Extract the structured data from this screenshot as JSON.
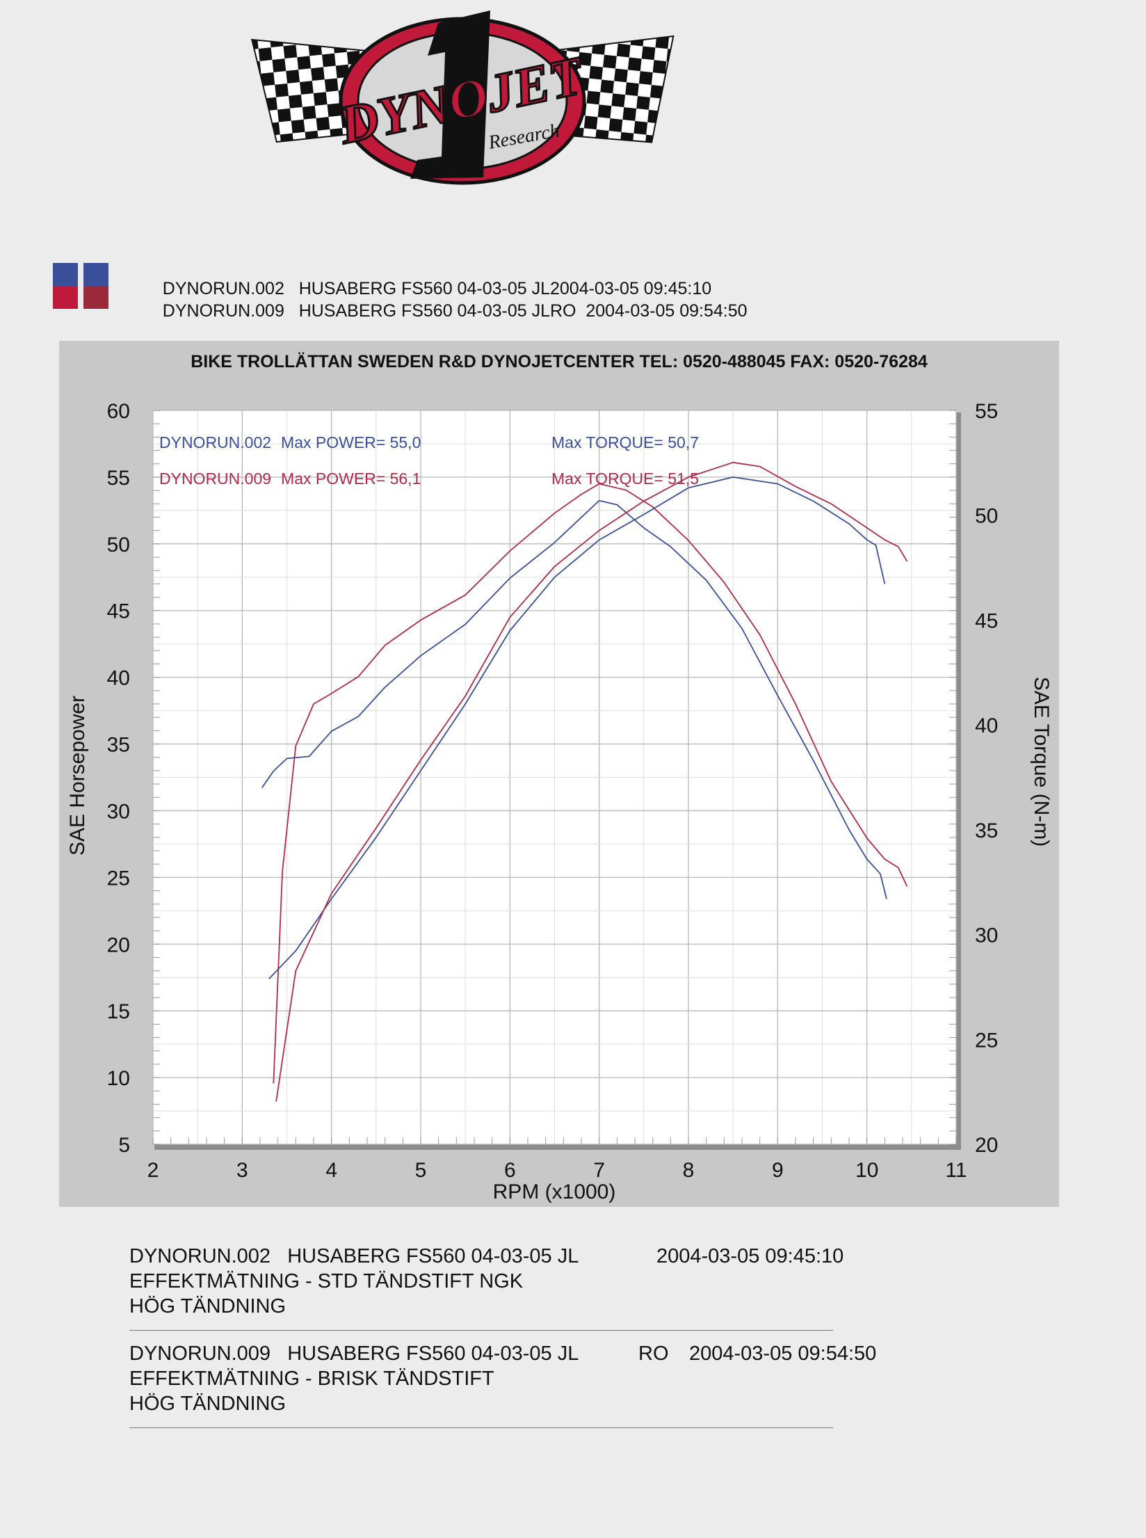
{
  "logo": {
    "text": "DYNOJET",
    "subtext": "Research",
    "colors": {
      "red": "#c0193a",
      "black": "#111111"
    }
  },
  "header_legend": [
    {
      "run": "DYNORUN.002",
      "desc": "HUSABERG FS560 04-03-05 JL2004-03-05 09:45:10",
      "color": "#3a4f9a"
    },
    {
      "run": "DYNORUN.009",
      "desc": "HUSABERG FS560 04-03-05 JLRO  2004-03-05 09:54:50",
      "color": "#b02a4a"
    }
  ],
  "chart_data": {
    "type": "line",
    "title": "BIKE TROLLÄTTAN SWEDEN R&D DYNOJETCENTER TEL: 0520-488045 FAX: 0520-76284",
    "xlabel": "RPM (x1000)",
    "ylabel": "SAE Horsepower",
    "y2label": "SAE Torque (N-m)",
    "xlim": [
      2,
      11
    ],
    "ylim": [
      5,
      60
    ],
    "y2lim": [
      20,
      55
    ],
    "x_ticks": [
      2,
      3,
      4,
      5,
      6,
      7,
      8,
      9,
      10,
      11
    ],
    "y_ticks": [
      5,
      10,
      15,
      20,
      25,
      30,
      35,
      40,
      45,
      50,
      55,
      60
    ],
    "y2_ticks": [
      20,
      25,
      30,
      35,
      40,
      45,
      50,
      55
    ],
    "grid": true,
    "annotations": [
      {
        "run": "DYNORUN.002",
        "power_label": "Max POWER= 55,0",
        "torque_label": "Max TORQUE= 50,7",
        "color": "#3a4f9a"
      },
      {
        "run": "DYNORUN.009",
        "power_label": "Max POWER= 56,1",
        "torque_label": "Max TORQUE= 51,5",
        "color": "#b02a4a"
      }
    ],
    "series": [
      {
        "name": "DYNORUN.002",
        "quantity": "torque",
        "axis": "right",
        "color": "#3a4f9a",
        "x": [
          3.22,
          3.35,
          3.5,
          3.75,
          4.0,
          4.3,
          4.6,
          5.0,
          5.5,
          6.0,
          6.5,
          6.8,
          7.0,
          7.2,
          7.5,
          7.8,
          8.2,
          8.6,
          9.0,
          9.4,
          9.8,
          10.0,
          10.15,
          10.22
        ],
        "y": [
          37.0,
          37.8,
          38.4,
          38.5,
          39.7,
          40.4,
          41.8,
          43.3,
          44.8,
          47.0,
          48.7,
          49.9,
          50.7,
          50.5,
          49.4,
          48.5,
          46.9,
          44.6,
          41.4,
          38.3,
          35.0,
          33.6,
          32.9,
          31.7
        ]
      },
      {
        "name": "DYNORUN.009",
        "quantity": "torque",
        "axis": "right",
        "color": "#b02a4a",
        "x": [
          3.35,
          3.45,
          3.6,
          3.8,
          4.0,
          4.3,
          4.6,
          5.0,
          5.5,
          6.0,
          6.5,
          6.8,
          7.0,
          7.3,
          7.6,
          8.0,
          8.4,
          8.8,
          9.2,
          9.6,
          10.0,
          10.2,
          10.35,
          10.45
        ],
        "y": [
          22.9,
          33.0,
          39.0,
          41.0,
          41.5,
          42.3,
          43.8,
          45.0,
          46.2,
          48.3,
          50.1,
          51.0,
          51.5,
          51.2,
          50.4,
          48.8,
          46.8,
          44.3,
          41.0,
          37.3,
          34.6,
          33.6,
          33.2,
          32.3
        ]
      },
      {
        "name": "DYNORUN.002",
        "quantity": "power",
        "axis": "left",
        "color": "#3a4f9a",
        "x": [
          3.3,
          3.6,
          4.0,
          4.5,
          5.0,
          5.5,
          6.0,
          6.5,
          7.0,
          7.5,
          8.0,
          8.5,
          9.0,
          9.4,
          9.8,
          10.0,
          10.1,
          10.2
        ],
        "y": [
          17.4,
          19.5,
          23.4,
          28.0,
          33.0,
          38.0,
          43.5,
          47.5,
          50.3,
          52.2,
          54.2,
          55.0,
          54.5,
          53.2,
          51.5,
          50.3,
          49.9,
          47.0
        ]
      },
      {
        "name": "DYNORUN.009",
        "quantity": "power",
        "axis": "left",
        "color": "#b02a4a",
        "x": [
          3.38,
          3.6,
          4.0,
          4.5,
          5.0,
          5.5,
          6.0,
          6.5,
          7.0,
          7.5,
          8.0,
          8.5,
          8.8,
          9.2,
          9.6,
          10.0,
          10.2,
          10.35,
          10.45
        ],
        "y": [
          8.2,
          18.0,
          23.8,
          28.7,
          33.8,
          38.6,
          44.5,
          48.3,
          51.0,
          53.2,
          55.0,
          56.1,
          55.8,
          54.3,
          53.0,
          51.2,
          50.3,
          49.8,
          48.7
        ]
      }
    ]
  },
  "footer": [
    {
      "run": "DYNORUN.002",
      "desc": "HUSABERG FS560 04-03-05 JL",
      "date": "2004-03-05 09:45:10",
      "line2": "EFFEKTMÄTNING - STD TÄNDSTIFT NGK",
      "line3": "HÖG TÄNDNING"
    },
    {
      "run": "DYNORUN.009",
      "desc": "HUSABERG FS560 04-03-05 JL",
      "code": "RO",
      "date": "2004-03-05 09:54:50",
      "line2": "EFFEKTMÄTNING - BRISK TÄNDSTIFT",
      "line3": "HÖG TÄNDNING"
    }
  ]
}
